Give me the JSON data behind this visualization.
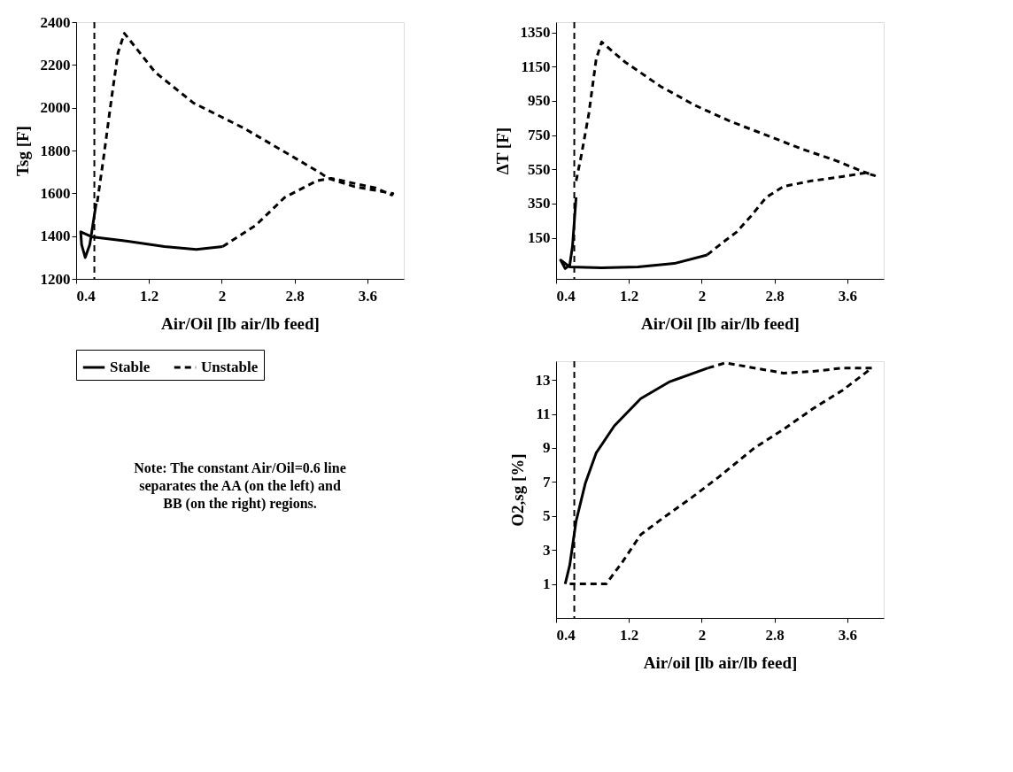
{
  "chart_data": [
    {
      "type": "line",
      "xlabel": "Air/Oil [lb air/lb feed]",
      "ylabel": "Tsg [F]",
      "xlim": [
        0.4,
        4.0
      ],
      "xticks": [
        0.4,
        1.2,
        2,
        2.8,
        3.6
      ],
      "ylim": [
        1200,
        2400
      ],
      "yticks": [
        1200,
        1400,
        1600,
        1800,
        2000,
        2200,
        2400
      ],
      "grid": false,
      "legend": "bottom",
      "ref_lines": [
        {
          "axis": "x",
          "value": 0.6,
          "line_style": "dashed",
          "color": "#000000"
        }
      ],
      "annotations": [
        "Note: The constant Air/Oil=0.6 line separates the AA  (on the left) and BB (on the right) regions."
      ],
      "series": [
        {
          "name": "Stable",
          "color": "#000000",
          "line_style": "solid",
          "x": [
            0.62,
            0.55,
            0.5,
            0.46,
            0.45,
            0.57,
            0.95,
            1.37,
            1.72,
            2.01
          ],
          "values": [
            1553,
            1360,
            1300,
            1360,
            1420,
            1397,
            1377,
            1351,
            1338,
            1351
          ]
        },
        {
          "name": "Unstable",
          "color": "#000000",
          "line_style": "dashed",
          "x": [
            2.01,
            2.37,
            2.69,
            3.04,
            3.2,
            3.69,
            3.87,
            3.88,
            3.46,
            3.17,
            3.08,
            2.66,
            2.24,
            1.69,
            1.27,
            0.93,
            0.86,
            0.79,
            0.7,
            0.63
          ],
          "values": [
            1351,
            1449,
            1580,
            1658,
            1670,
            1625,
            1592,
            1599,
            1631,
            1670,
            1696,
            1801,
            1905,
            2022,
            2165,
            2348,
            2257,
            2048,
            1762,
            1553
          ]
        }
      ]
    },
    {
      "type": "line",
      "xlabel": "Air/Oil [lb air/lb feed]",
      "ylabel": "ΔT [F]",
      "xlim": [
        0.4,
        4.0
      ],
      "xticks": [
        0.4,
        1.2,
        2,
        2.8,
        3.6
      ],
      "ylim": [
        -90,
        1410
      ],
      "yticks": [
        150,
        350,
        550,
        750,
        950,
        1150,
        1350
      ],
      "grid": false,
      "ref_lines": [
        {
          "axis": "x",
          "value": 0.6,
          "line_style": "dashed",
          "color": "#000000"
        }
      ],
      "series": [
        {
          "color": "#000000",
          "line_style": "solid",
          "x": [
            0.62,
            0.58,
            0.55,
            0.5,
            0.45,
            0.55,
            0.9,
            1.3,
            1.7,
            2.06
          ],
          "values": [
            387,
            100,
            -10,
            -30,
            20,
            -20,
            -25,
            -20,
            0,
            50
          ]
        },
        {
          "color": "#000000",
          "line_style": "dashed",
          "x": [
            2.06,
            2.22,
            2.38,
            2.54,
            2.71,
            2.9,
            3.19,
            3.51,
            3.8,
            3.9,
            3.77,
            3.48,
            3.09,
            2.71,
            2.32,
            1.93,
            1.55,
            1.16,
            0.9,
            0.84,
            0.76,
            0.68,
            0.62
          ],
          "values": [
            50,
            118,
            182,
            276,
            387,
            450,
            481,
            505,
            529,
            513,
            537,
            600,
            671,
            750,
            829,
            923,
            1034,
            1176,
            1294,
            1192,
            876,
            639,
            481
          ]
        }
      ]
    },
    {
      "type": "line",
      "xlabel": "Air/oil [lb air/lb feed]",
      "ylabel": "O2,sg [%]",
      "xlim": [
        0.4,
        4.0
      ],
      "xticks": [
        0.4,
        1.2,
        2,
        2.8,
        3.6
      ],
      "ylim": [
        -1,
        14.1
      ],
      "yticks": [
        1,
        3,
        5,
        7,
        9,
        11,
        13
      ],
      "grid": false,
      "ref_lines": [
        {
          "axis": "x",
          "value": 0.6,
          "line_style": "dashed",
          "color": "#000000"
        }
      ],
      "series": [
        {
          "color": "#000000",
          "line_style": "solid",
          "x": [
            0.5,
            0.55,
            0.62,
            0.72,
            0.84,
            1.04,
            1.33,
            1.65,
            2.07
          ],
          "values": [
            1.0,
            2.1,
            4.7,
            6.9,
            8.7,
            10.3,
            11.9,
            12.9,
            13.7
          ]
        },
        {
          "color": "#000000",
          "line_style": "dashed",
          "x": [
            2.07,
            2.26,
            2.58,
            2.9,
            3.22,
            3.55,
            3.87,
            3.55,
            3.22,
            2.9,
            2.58,
            2.19,
            1.87,
            1.58,
            1.33,
            1.13,
            0.95,
            0.75,
            0.55
          ],
          "values": [
            13.7,
            14.0,
            13.7,
            13.4,
            13.5,
            13.7,
            13.7,
            12.4,
            11.3,
            10.1,
            9.0,
            7.3,
            6.0,
            4.9,
            3.9,
            2.3,
            1.0,
            1.0,
            1.0
          ]
        }
      ]
    }
  ]
}
